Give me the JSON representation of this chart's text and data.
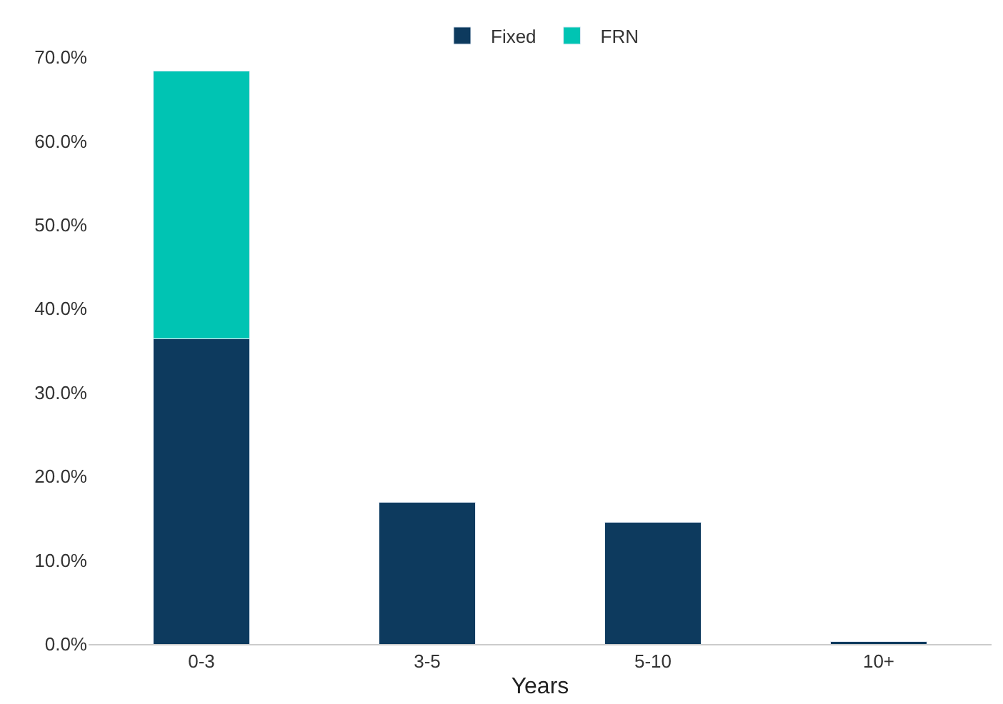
{
  "chart_data": {
    "type": "bar",
    "stacked": true,
    "xlabel": "Years",
    "categories": [
      "0-3",
      "3-5",
      "5-10",
      "10+"
    ],
    "series": [
      {
        "name": "Fixed",
        "color": "#0d3a5e",
        "values": [
          36.4,
          16.9,
          14.5,
          0.3
        ]
      },
      {
        "name": "FRN",
        "color": "#00c4b3",
        "values": [
          31.9,
          null,
          null,
          null
        ]
      }
    ],
    "ylim": [
      0,
      70
    ],
    "yticks": [
      {
        "value": 0,
        "label": "0.0%"
      },
      {
        "value": 10,
        "label": "10.0%"
      },
      {
        "value": 20,
        "label": "20.0%"
      },
      {
        "value": 30,
        "label": "30.0%"
      },
      {
        "value": 40,
        "label": "40.0%"
      },
      {
        "value": 50,
        "label": "50.0%"
      },
      {
        "value": 60,
        "label": "60.0%"
      },
      {
        "value": 70,
        "label": "70.0%"
      }
    ],
    "legend": "top"
  }
}
